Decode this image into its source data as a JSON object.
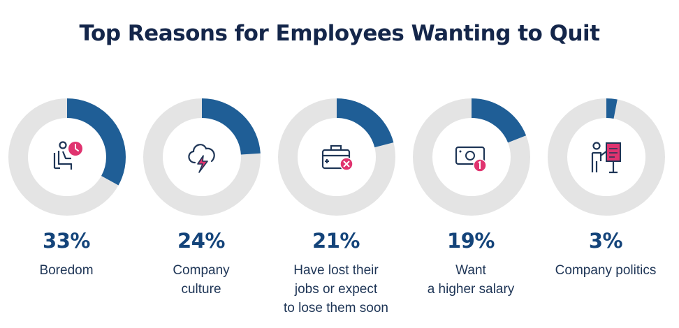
{
  "chart_data": {
    "type": "donut",
    "title": "Top Reasons for Employees Wanting to Quit",
    "unit": "%",
    "categories": [
      "Boredom",
      "Company culture",
      "Have lost their jobs or expect to lose them soon",
      "Want a higher salary",
      "Company politics"
    ],
    "values": [
      33,
      24,
      21,
      19,
      3
    ],
    "display_values": [
      "33%",
      "24%",
      "21%",
      "19%",
      "3%"
    ],
    "display_labels": [
      "Boredom",
      "Company\nculture",
      "Have lost their\njobs or expect\nto lose them soon",
      "Want\na higher salary",
      "Company politics"
    ],
    "icons": [
      "person-clock-icon",
      "storm-cloud-icon",
      "toolbox-x-icon",
      "money-bill-icon",
      "presenter-board-icon"
    ],
    "colors": {
      "value": "#1f5e96",
      "track": "#e4e4e4",
      "accent": "#e0336f",
      "icon": "#1e3556"
    }
  }
}
